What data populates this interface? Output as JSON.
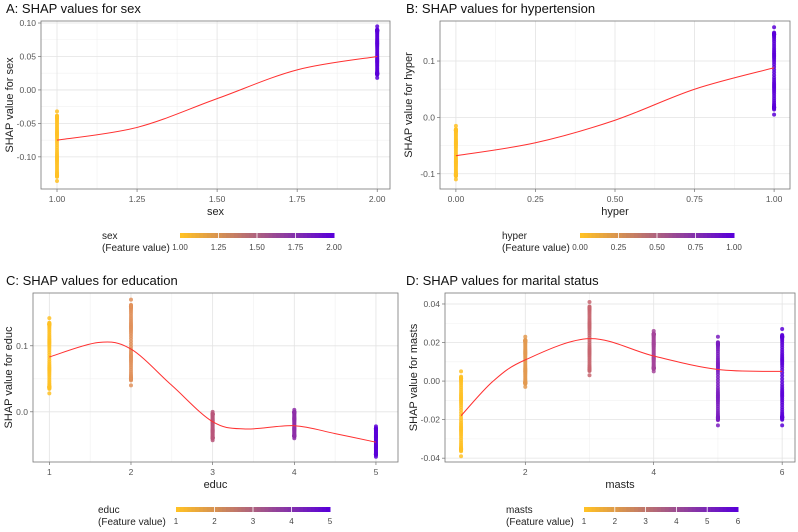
{
  "chart_data": [
    {
      "type": "scatter",
      "title": "A: SHAP values for sex",
      "xlabel": "sex",
      "ylabel": "SHAP value for sex",
      "xlim": [
        0.95,
        2.04
      ],
      "ylim": [
        -0.148,
        0.103
      ],
      "xticks": [
        1.0,
        1.25,
        1.5,
        1.75,
        2.0
      ],
      "xtick_labels": [
        "1.00",
        "1.25",
        "1.50",
        "1.75",
        "2.00"
      ],
      "yticks": [
        -0.1,
        -0.05,
        0.0,
        0.05,
        0.1
      ],
      "ytick_labels": [
        "-0.10",
        "-0.05",
        "0.00",
        "0.05",
        "0.10"
      ],
      "grid": true,
      "groups": [
        {
          "x": 1,
          "ymin": -0.136,
          "ymax": -0.032,
          "color": "#FFC125"
        },
        {
          "x": 2,
          "ymin": 0.018,
          "ymax": 0.095,
          "color": "#5A00D8"
        }
      ],
      "smooth": {
        "color": "#FF3030",
        "x": [
          1,
          1.25,
          1.5,
          1.75,
          2
        ],
        "y": [
          -0.075,
          -0.056,
          -0.013,
          0.03,
          0.05
        ]
      },
      "legend": {
        "title_line1": "sex",
        "title_line2": "(Feature value)",
        "labels": [
          "1.00",
          "1.25",
          "1.50",
          "1.75",
          "2.00"
        ],
        "placement": "bottom"
      }
    },
    {
      "type": "scatter",
      "title": "B: SHAP values for hypertension",
      "xlabel": "hyper",
      "ylabel": "SHAP value for hyper",
      "xlim": [
        -0.05,
        1.05
      ],
      "ylim": [
        -0.127,
        0.171
      ],
      "xticks": [
        0,
        0.25,
        0.5,
        0.75,
        1.0
      ],
      "xtick_labels": [
        "0.00",
        "0.25",
        "0.50",
        "0.75",
        "1.00"
      ],
      "yticks": [
        -0.1,
        0.0,
        0.1
      ],
      "ytick_labels": [
        "-0.1",
        "0.0",
        "0.1"
      ],
      "grid": true,
      "groups": [
        {
          "x": 0,
          "ymin": -0.11,
          "ymax": -0.015,
          "color": "#FFC125"
        },
        {
          "x": 1,
          "ymin": 0.005,
          "ymax": 0.16,
          "color": "#5A00D8"
        }
      ],
      "smooth": {
        "color": "#FF3030",
        "x": [
          0,
          0.25,
          0.5,
          0.75,
          1
        ],
        "y": [
          -0.068,
          -0.045,
          -0.005,
          0.05,
          0.088
        ]
      },
      "legend": {
        "title_line1": "hyper",
        "title_line2": "(Feature value)",
        "labels": [
          "0.00",
          "0.25",
          "0.50",
          "0.75",
          "1.00"
        ],
        "placement": "bottom"
      }
    },
    {
      "type": "scatter",
      "title": "C: SHAP values for education",
      "xlabel": "educ",
      "ylabel": "SHAP value for educ",
      "xlim": [
        0.8,
        5.27
      ],
      "ylim": [
        -0.076,
        0.18
      ],
      "xticks": [
        1,
        2,
        3,
        4,
        5
      ],
      "xtick_labels": [
        "1",
        "2",
        "3",
        "4",
        "5"
      ],
      "yticks": [
        0.0,
        0.1
      ],
      "ytick_labels": [
        "0.0",
        "0.1"
      ],
      "grid": true,
      "groups": [
        {
          "x": 1,
          "ymin": 0.028,
          "ymax": 0.142,
          "color": "#FFC125"
        },
        {
          "x": 2,
          "ymin": 0.04,
          "ymax": 0.17,
          "color": "#E0905A"
        },
        {
          "x": 3,
          "ymin": -0.043,
          "ymax": 0.0,
          "color": "#B9567A"
        },
        {
          "x": 4,
          "ymin": -0.04,
          "ymax": 0.003,
          "color": "#8E2FA8"
        },
        {
          "x": 5,
          "ymin": -0.068,
          "ymax": -0.022,
          "color": "#5A00D8"
        }
      ],
      "smooth": {
        "color": "#FF3030",
        "x": [
          1,
          1.6,
          2,
          2.5,
          3,
          3.4,
          4,
          4.5,
          5
        ],
        "y": [
          0.083,
          0.105,
          0.095,
          0.04,
          -0.015,
          -0.026,
          -0.021,
          -0.033,
          -0.046
        ]
      },
      "legend": {
        "title_line1": "educ",
        "title_line2": "(Feature value)",
        "labels": [
          "1",
          "2",
          "3",
          "4",
          "5"
        ],
        "placement": "bottom"
      }
    },
    {
      "type": "scatter",
      "title": "D: SHAP values for marital status",
      "xlabel": "masts",
      "ylabel": "SHAP value for masts",
      "xlim": [
        0.75,
        6.2
      ],
      "ylim": [
        -0.042,
        0.0457
      ],
      "xticks": [
        2,
        4,
        6
      ],
      "xtick_labels": [
        "2",
        "4",
        "6"
      ],
      "yticks": [
        -0.04,
        -0.02,
        0.0,
        0.02,
        0.04
      ],
      "ytick_labels": [
        "-0.04",
        "-0.02",
        "0.00",
        "0.02",
        "0.04"
      ],
      "grid": true,
      "groups": [
        {
          "x": 1,
          "ymin": -0.039,
          "ymax": 0.005,
          "color": "#FFC125"
        },
        {
          "x": 2,
          "ymin": -0.003,
          "ymax": 0.023,
          "color": "#E39A50"
        },
        {
          "x": 3,
          "ymin": 0.003,
          "ymax": 0.041,
          "color": "#C76670"
        },
        {
          "x": 4,
          "ymin": 0.005,
          "ymax": 0.026,
          "color": "#A5449A"
        },
        {
          "x": 5,
          "ymin": -0.023,
          "ymax": 0.023,
          "color": "#7A1CC0"
        },
        {
          "x": 6,
          "ymin": -0.023,
          "ymax": 0.027,
          "color": "#5A00D8"
        }
      ],
      "smooth": {
        "color": "#FF3030",
        "x": [
          1,
          1.5,
          2,
          3,
          4,
          5,
          6
        ],
        "y": [
          -0.018,
          0.0,
          0.011,
          0.022,
          0.013,
          0.006,
          0.005
        ]
      },
      "legend": {
        "title_line1": "masts",
        "title_line2": "(Feature value)",
        "labels": [
          "1",
          "2",
          "3",
          "4",
          "5",
          "6"
        ],
        "placement": "bottom"
      }
    }
  ],
  "colors": {
    "low": "#FFC125",
    "high": "#5A00D8",
    "smooth": "#FF3030"
  }
}
